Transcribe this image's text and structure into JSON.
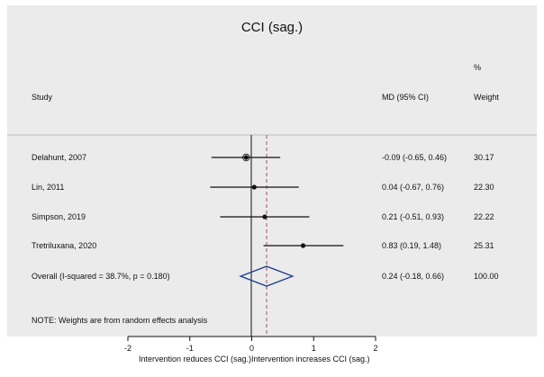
{
  "chart_data": {
    "type": "forest",
    "title": "CCI (sag.)",
    "headers": {
      "study": "Study",
      "md": "MD (95% CI)",
      "weight_line1": "%",
      "weight_line2": "Weight"
    },
    "studies": [
      {
        "label": "Delahunt, 2007",
        "md": -0.09,
        "lo": -0.65,
        "hi": 0.46,
        "ci_text": "-0.09 (-0.65, 0.46)",
        "weight": "30.17"
      },
      {
        "label": "Lin, 2011",
        "md": 0.04,
        "lo": -0.67,
        "hi": 0.76,
        "ci_text": "0.04 (-0.67, 0.76)",
        "weight": "22.30"
      },
      {
        "label": "Simpson, 2019",
        "md": 0.21,
        "lo": -0.51,
        "hi": 0.93,
        "ci_text": "0.21 (-0.51, 0.93)",
        "weight": "22.22"
      },
      {
        "label": "Tretriluxana, 2020",
        "md": 0.83,
        "lo": 0.19,
        "hi": 1.48,
        "ci_text": "0.83 (0.19, 1.48)",
        "weight": "25.31"
      }
    ],
    "overall": {
      "label": "Overall  (I-squared = 38.7%, p = 0.180)",
      "md": 0.24,
      "lo": -0.18,
      "hi": 0.66,
      "ci_text": "0.24 (-0.18, 0.66)",
      "weight": "100.00"
    },
    "note": "NOTE: Weights are from random effects analysis",
    "x_ticks": [
      -2,
      -1,
      0,
      1,
      2
    ],
    "xlim": [
      -2,
      2
    ],
    "xlabel_left": "Intervention reduces CCI (sag.)",
    "xlabel_right": "Intervention increases CCI (sag.)",
    "colors": {
      "background": "#ebebeb",
      "diamond": "#1a3b8f",
      "dashed_line": "#a05060",
      "ink": "#111111"
    }
  }
}
